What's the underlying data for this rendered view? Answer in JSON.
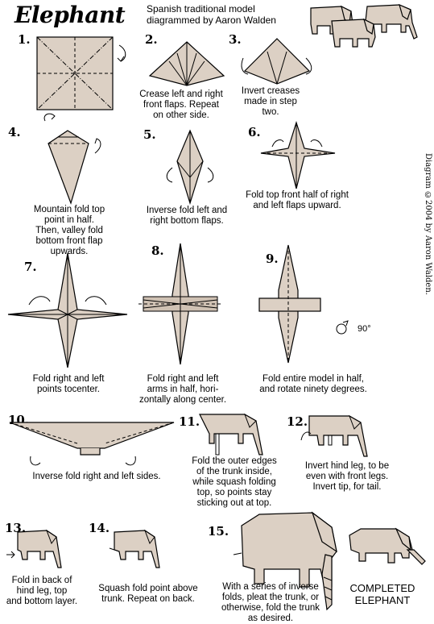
{
  "header": {
    "title": "Elephant",
    "subtitle_line1": "Spanish traditional model",
    "subtitle_line2": "diagrammed by Aaron Walden"
  },
  "credit": "Diagram ©2004 by Aaron Walden.",
  "rotation_label": "90°",
  "steps": [
    {
      "number": "1.",
      "caption": []
    },
    {
      "number": "2.",
      "caption": [
        "Crease left and right",
        "front flaps.  Repeat",
        "on other side."
      ]
    },
    {
      "number": "3.",
      "caption": [
        "Invert creases",
        "made in step",
        "two."
      ]
    },
    {
      "number": "4.",
      "caption": [
        "Mountain fold top",
        "point in half.",
        "Then, valley fold",
        "bottom front flap",
        "upwards."
      ]
    },
    {
      "number": "5.",
      "caption": [
        "Inverse fold left and",
        "right bottom flaps."
      ]
    },
    {
      "number": "6.",
      "caption": [
        "Fold top front half of right",
        "and left flaps upward."
      ]
    },
    {
      "number": "7.",
      "caption": [
        "Fold right and left",
        "points tocenter."
      ]
    },
    {
      "number": "8.",
      "caption": [
        "Fold right and left",
        "arms in half, hori-",
        "zontally along center."
      ]
    },
    {
      "number": "9.",
      "caption": [
        "Fold entire model in half,",
        "and rotate ninety degrees."
      ]
    },
    {
      "number": "10.",
      "caption": [
        "Inverse fold right and left sides."
      ]
    },
    {
      "number": "11.",
      "caption": [
        "Fold the outer edges",
        "of the trunk inside,",
        "while squash folding",
        "top, so points stay",
        "sticking out at top."
      ]
    },
    {
      "number": "12.",
      "caption": [
        "Invert hind leg, to be",
        "even with front legs.",
        "Invert tip, for tail."
      ]
    },
    {
      "number": "13.",
      "caption": [
        "Fold in back of",
        "hind leg, top",
        "and bottom layer."
      ]
    },
    {
      "number": "14.",
      "caption": [
        "Squash fold point above",
        "trunk. Repeat on back."
      ]
    },
    {
      "number": "15.",
      "caption": [
        "With a series of inverse",
        "folds, pleat the trunk, or",
        "otherwise, fold the trunk",
        "as desired."
      ]
    }
  ],
  "completed": [
    "COMPLETED",
    "ELEPHANT"
  ]
}
